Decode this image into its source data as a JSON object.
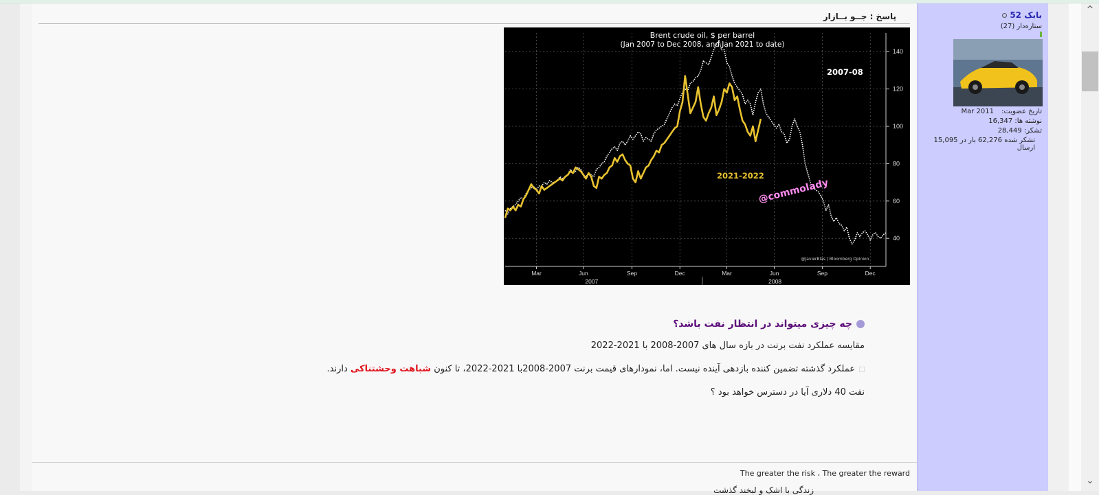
{
  "post": {
    "title": "پاسخ : جــو بــازار",
    "heading": "چه چیزی میتواند در انتظار نفت باشد؟",
    "para1": "مقایسه عملکرد نفت برنت در بازه سال های 2007-2008 با 2021-2022",
    "para2_before": "عملکرد گذشته تضمین کننده بازدهی آینده نیست. اما، نمودارهای قیمت برنت 2007-2008با 2021-2022، تا کنون ",
    "para2_highlight": "شباهت وحشتناکی",
    "para2_after": " دارند.",
    "para3": "نفت 40 دلاری آیا در دسترس خواهد بود ؟",
    "signature": "The greater the risk ، The greater the reward",
    "signature2": "زندگی با اشک و لبخند گذشت"
  },
  "user": {
    "name": "بابک 52",
    "rank": "ستاره‌دار (27)",
    "join_label": "تاریخ عضویت:",
    "join_value": "Mar 2011",
    "posts_label": "نوشته ها:",
    "posts_value": "16,347",
    "thanks_label": "تشکر:",
    "thanks_value": "28,449",
    "thanked": "تشکر شده 62,276 بار در 15,095 ارسال",
    "avatar_icon": "yellow-sports-car-photo"
  },
  "chart_data": {
    "type": "line",
    "title": "Brent crude oil, $ per barrel",
    "subtitle": "(Jan 2007 to Dec 2008, and Jan 2021 to date)",
    "x_ticks": [
      "Mar",
      "Jun",
      "Sep",
      "Dec",
      "Mar",
      "Jun",
      "Sep",
      "Dec"
    ],
    "x_years": [
      "2007",
      "2008"
    ],
    "ylim": [
      25,
      150
    ],
    "y_ticks": [
      40,
      60,
      80,
      100,
      120,
      140
    ],
    "annotation_a": "2007-08",
    "annotation_b": "2021-2022",
    "watermark": "@commolady",
    "credit": "@JavierBlas | Bloomberg Opinion",
    "series": [
      {
        "name": "2007-08",
        "color": "#ffffff",
        "style": "dotted",
        "x": [
          0,
          5,
          10,
          15,
          20,
          25,
          30,
          35,
          40,
          45,
          50,
          55,
          60,
          65,
          70,
          75,
          80,
          85,
          90,
          95,
          100,
          105,
          110,
          115,
          120,
          125,
          130,
          135,
          140,
          145,
          150,
          155,
          160,
          165,
          170,
          175,
          180,
          185,
          190,
          195,
          200,
          205,
          210,
          215,
          220,
          225,
          230,
          235,
          240,
          245,
          250,
          255,
          260,
          265,
          270,
          275,
          280,
          285,
          290,
          295,
          300,
          305,
          310,
          315,
          320,
          325,
          330,
          335,
          340,
          345,
          350,
          355,
          360,
          365,
          370,
          375,
          380,
          385,
          390,
          395,
          400,
          405,
          410,
          415,
          420,
          425,
          430,
          435,
          440,
          445,
          450,
          455,
          460,
          465,
          470,
          475,
          480,
          485,
          490,
          495,
          500,
          505,
          510,
          515,
          520,
          525,
          530,
          535,
          540,
          545,
          550,
          555,
          560,
          565,
          570,
          575,
          580,
          585,
          590,
          595,
          600,
          605,
          610,
          615,
          620,
          625,
          630,
          635,
          640,
          645,
          650,
          655,
          660,
          665,
          670,
          675,
          680,
          685,
          690,
          695,
          700,
          705,
          710,
          715,
          720,
          725,
          730
        ],
        "values": [
          55,
          53,
          56,
          57,
          58,
          60,
          62,
          61,
          64,
          66,
          67,
          68,
          66,
          68,
          68,
          70,
          69,
          71,
          70,
          70,
          71,
          73,
          72,
          73,
          74,
          77,
          75,
          76,
          78,
          77,
          74,
          73,
          75,
          74,
          73,
          77,
          78,
          80,
          81,
          84,
          86,
          88,
          89,
          87,
          91,
          92,
          90,
          92,
          95,
          93,
          95,
          97,
          96,
          92,
          94,
          93,
          92,
          96,
          98,
          99,
          100,
          101,
          104,
          107,
          110,
          112,
          111,
          115,
          118,
          120,
          119,
          123,
          124,
          126,
          127,
          130,
          135,
          134,
          133,
          137,
          141,
          144,
          146,
          141,
          141,
          134,
          132,
          127,
          123,
          121,
          119,
          117,
          112,
          114,
          112,
          106,
          113,
          118,
          120,
          112,
          107,
          105,
          103,
          101,
          99,
          101,
          97,
          96,
          91,
          93,
          100,
          104,
          100,
          97,
          90,
          80,
          75,
          70,
          67,
          66,
          65,
          63,
          60,
          55,
          58,
          52,
          49,
          51,
          48,
          47,
          44,
          46,
          40,
          37,
          39,
          43,
          41,
          43,
          44,
          42,
          39,
          42,
          43,
          41,
          40,
          42,
          43
        ]
      },
      {
        "name": "2021-2022",
        "color": "#e8c230",
        "style": "solid",
        "x": [
          0,
          5,
          10,
          15,
          20,
          25,
          30,
          35,
          40,
          45,
          50,
          55,
          60,
          65,
          70,
          75,
          80,
          85,
          90,
          95,
          100,
          105,
          110,
          115,
          120,
          125,
          130,
          135,
          140,
          145,
          150,
          155,
          160,
          165,
          170,
          175,
          180,
          185,
          190,
          195,
          200,
          205,
          210,
          215,
          220,
          225,
          230,
          235,
          240,
          245,
          250,
          255,
          260,
          265,
          270,
          275,
          280,
          285,
          290,
          295,
          300,
          305,
          310,
          315,
          320,
          325,
          330,
          335,
          340,
          345,
          350,
          355,
          360,
          365,
          370,
          375,
          380,
          385,
          390,
          395,
          400,
          405,
          410,
          415,
          420,
          425,
          430,
          435,
          440,
          445,
          450,
          455,
          460,
          465,
          470,
          475,
          480,
          485,
          490
        ],
        "values": [
          51,
          56,
          55,
          57,
          55,
          58,
          57,
          61,
          63,
          66,
          69,
          67,
          66,
          64,
          68,
          66,
          67,
          68,
          69,
          70,
          71,
          72,
          71,
          73,
          74,
          76,
          75,
          78,
          77,
          76,
          74,
          72,
          75,
          73,
          68,
          67,
          73,
          72,
          74,
          75,
          78,
          79,
          83,
          81,
          84,
          85,
          82,
          80,
          79,
          72,
          70,
          76,
          72,
          75,
          78,
          79,
          82,
          84,
          87,
          86,
          90,
          91,
          93,
          95,
          97,
          99,
          100,
          108,
          113,
          127,
          117,
          107,
          110,
          113,
          121,
          112,
          105,
          103,
          107,
          110,
          116,
          106,
          109,
          113,
          120,
          118,
          123,
          121,
          114,
          116,
          109,
          103,
          101,
          97,
          95,
          100,
          92,
          98,
          104
        ]
      }
    ]
  }
}
